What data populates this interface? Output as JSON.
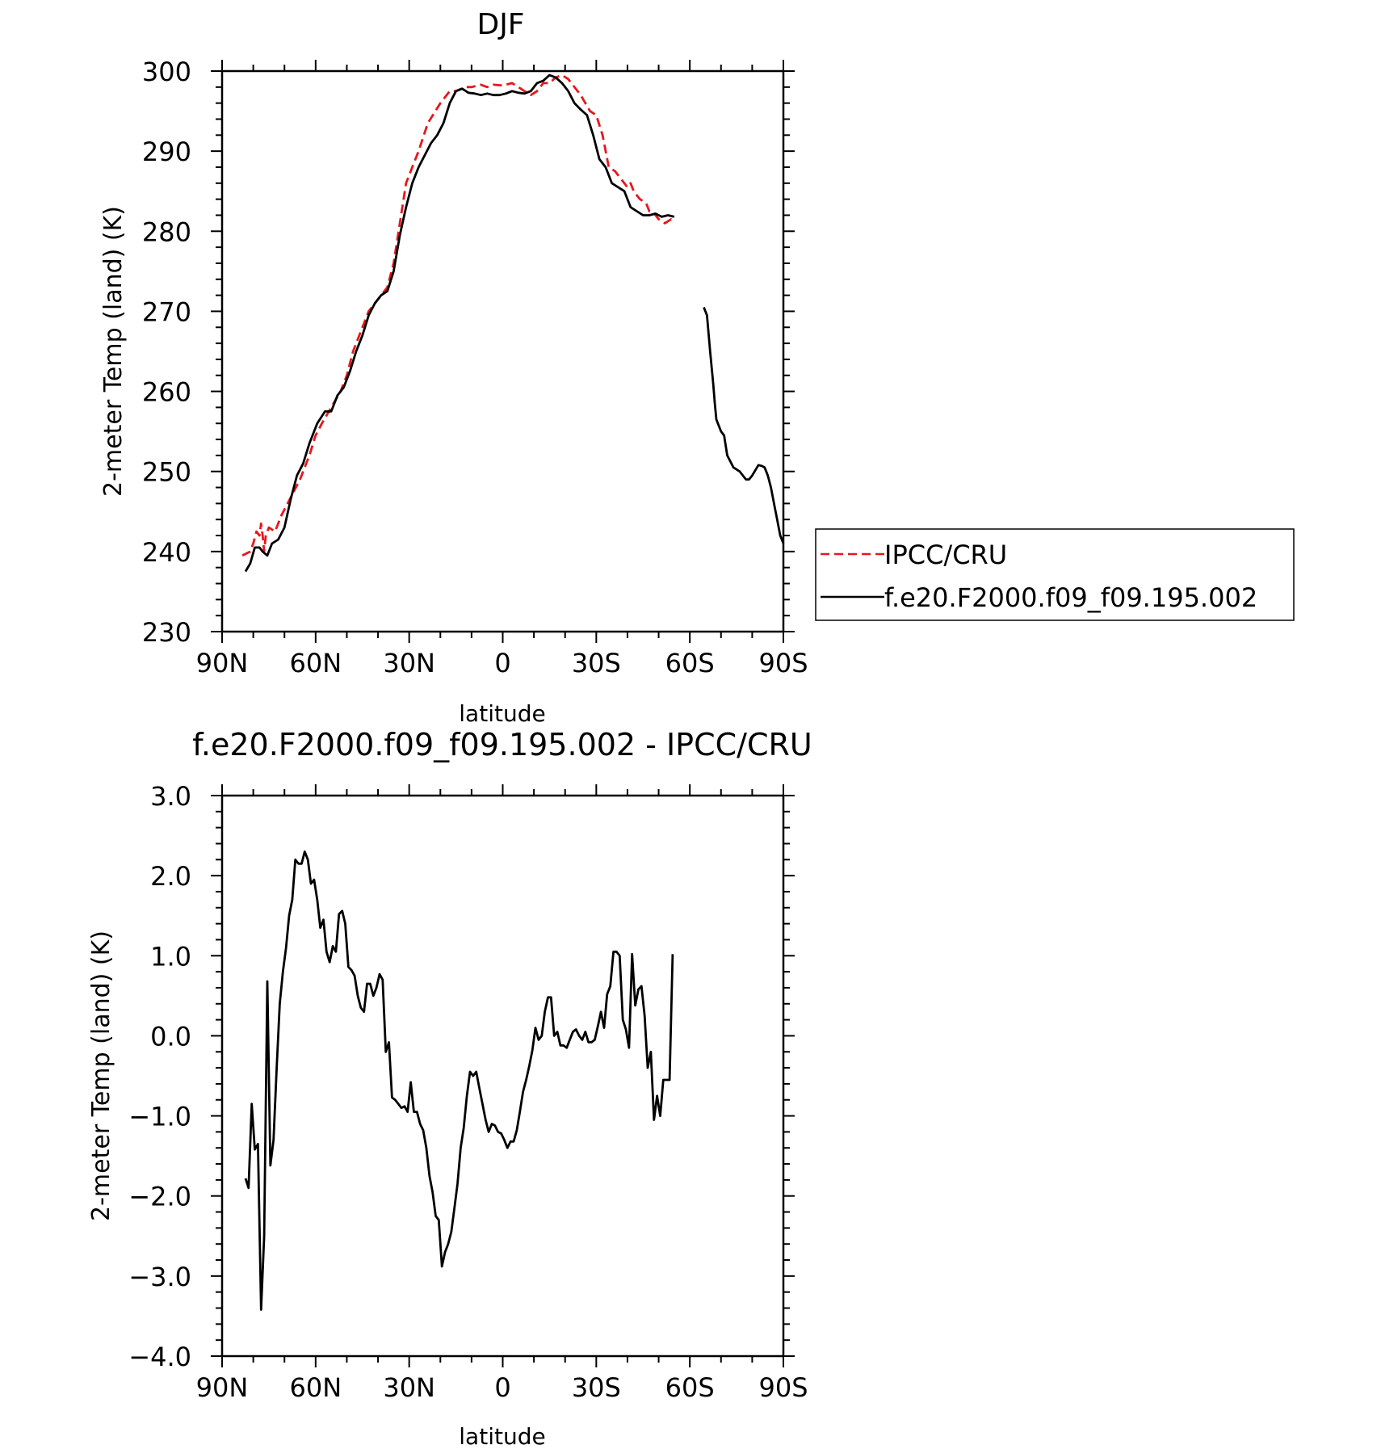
{
  "chart_data": [
    {
      "type": "line",
      "title": "DJF",
      "xlabel": "latitude",
      "ylabel": "2-meter Temp (land) (K)",
      "xlim": [
        90,
        -90
      ],
      "ylim": [
        230,
        300
      ],
      "x_ticks": [
        {
          "value": 90,
          "label": "90N"
        },
        {
          "value": 60,
          "label": "60N"
        },
        {
          "value": 30,
          "label": "30N"
        },
        {
          "value": 0,
          "label": "0"
        },
        {
          "value": -30,
          "label": "30S"
        },
        {
          "value": -60,
          "label": "60S"
        },
        {
          "value": -90,
          "label": "90S"
        }
      ],
      "y_ticks": [
        {
          "value": 230,
          "label": "230"
        },
        {
          "value": 240,
          "label": "240"
        },
        {
          "value": 250,
          "label": "250"
        },
        {
          "value": 260,
          "label": "260"
        },
        {
          "value": 270,
          "label": "270"
        },
        {
          "value": 280,
          "label": "280"
        },
        {
          "value": 290,
          "label": "290"
        },
        {
          "value": 300,
          "label": "300"
        }
      ],
      "legend": {
        "placement": "right"
      },
      "series": [
        {
          "name": "IPCC/CRU",
          "color": "#e8161b",
          "dash": true,
          "x": [
            83.5,
            81,
            80,
            79,
            78,
            77.5,
            77,
            76.5,
            76,
            75,
            73,
            71,
            69,
            67,
            65,
            62,
            60,
            58,
            55,
            52,
            50,
            48,
            46,
            43,
            41,
            39,
            37,
            35,
            33,
            31,
            29,
            27,
            24,
            20,
            17,
            15,
            12,
            10,
            7,
            5,
            3,
            0,
            -3,
            -5,
            -7,
            -9,
            -11,
            -13,
            -15,
            -17,
            -19,
            -21,
            -23,
            -25,
            -28,
            -30,
            -32,
            -34,
            -36,
            -38,
            -40,
            -41,
            -42,
            -43,
            -44,
            -46,
            -47,
            -48,
            -50,
            -52,
            -54,
            -54.5,
            -55
          ],
          "y": [
            239.5,
            240,
            241,
            242.5,
            242,
            243.5,
            242,
            240,
            242,
            243,
            242.5,
            244.5,
            246,
            247.5,
            249,
            252,
            254.5,
            256,
            258,
            260,
            262,
            265,
            267,
            270,
            271,
            272,
            273,
            276,
            281,
            286,
            288,
            290,
            293.5,
            296,
            297.5,
            297.5,
            298,
            298,
            298.3,
            298,
            298.3,
            298.2,
            298.5,
            298,
            297.5,
            297,
            297.5,
            298.5,
            298.5,
            299.2,
            299.5,
            299,
            298,
            297,
            295,
            294.5,
            292,
            288,
            287.5,
            286.5,
            285.5,
            286,
            285,
            284.5,
            284,
            283.5,
            282.5,
            282.5,
            281.5,
            281,
            281.5,
            281.3,
            281.5
          ]
        },
        {
          "name": "f.e20.F2000.f09_f09.195.002",
          "color": "#000000",
          "dash": false,
          "x": [
            82.5,
            81,
            79.5,
            78,
            77,
            75.5,
            74,
            72,
            70,
            68,
            66,
            64,
            62,
            59.5,
            57,
            55,
            53,
            51,
            49,
            47,
            45,
            43,
            41,
            39,
            37,
            35,
            33,
            31,
            29,
            27,
            25,
            23,
            21,
            19,
            17,
            15,
            13,
            11,
            9,
            7,
            5,
            3,
            1,
            -1,
            -3,
            -5,
            -7,
            -9,
            -11,
            -13,
            -15,
            -17,
            -19,
            -21,
            -23,
            -25,
            -27,
            -29,
            -31,
            -33,
            -35,
            -37,
            -39,
            -41,
            -43,
            -45,
            -47,
            -49,
            -51,
            -53,
            -55
          ],
          "y": [
            237.5,
            238.5,
            240.5,
            240.5,
            240,
            239.5,
            241,
            241.5,
            243,
            246.5,
            249.5,
            251,
            253.5,
            256,
            257.5,
            257.5,
            259.5,
            260.5,
            262.5,
            265,
            267,
            269.5,
            271,
            272,
            272.5,
            275,
            279.5,
            283,
            286,
            288,
            289.5,
            291,
            292,
            293.5,
            296,
            297.5,
            297.8,
            297.3,
            297.2,
            297,
            297.2,
            297,
            297,
            297.2,
            297.5,
            297.3,
            297.2,
            297.5,
            298.5,
            298.8,
            299.5,
            299.2,
            298.5,
            297.5,
            296,
            295.2,
            294.5,
            292,
            289,
            288,
            286,
            285.5,
            285,
            283,
            282.5,
            282,
            282,
            282.2,
            281.8,
            282,
            281.8
          ]
        },
        {
          "name": "f.e20.F2000.f09_f09.195.002",
          "color": "#000000",
          "dash": false,
          "legend": false,
          "x": [
            -64.5,
            -65.5,
            -66.5,
            -67.5,
            -68,
            -68.5,
            -69,
            -70,
            -71,
            -72,
            -74,
            -76,
            -77,
            -78,
            -79,
            -80,
            -82,
            -83,
            -84,
            -85,
            -86,
            -87,
            -88,
            -89,
            -90
          ],
          "y": [
            270.5,
            269.5,
            265,
            261,
            258.5,
            256.5,
            256,
            255,
            254.5,
            252,
            250.5,
            250,
            249.5,
            249,
            249,
            249.5,
            250.8,
            250.7,
            250.5,
            249.5,
            248,
            246,
            244,
            242,
            241
          ]
        }
      ]
    },
    {
      "type": "line",
      "title": "f.e20.F2000.f09_f09.195.002 - IPCC/CRU",
      "xlabel": "latitude",
      "ylabel": "2-meter Temp (land) (K)",
      "xlim": [
        90,
        -90
      ],
      "ylim": [
        -4.0,
        3.0
      ],
      "x_ticks": [
        {
          "value": 90,
          "label": "90N"
        },
        {
          "value": 60,
          "label": "60N"
        },
        {
          "value": 30,
          "label": "30N"
        },
        {
          "value": 0,
          "label": "0"
        },
        {
          "value": -30,
          "label": "30S"
        },
        {
          "value": -60,
          "label": "60S"
        },
        {
          "value": -90,
          "label": "90S"
        }
      ],
      "y_ticks": [
        {
          "value": -4.0,
          "label": "-4.0"
        },
        {
          "value": -3.0,
          "label": "-3.0"
        },
        {
          "value": -2.0,
          "label": "-2.0"
        },
        {
          "value": -1.0,
          "label": "-1.0"
        },
        {
          "value": 0.0,
          "label": "0.0"
        },
        {
          "value": 1.0,
          "label": "1.0"
        },
        {
          "value": 2.0,
          "label": "2.0"
        },
        {
          "value": 3.0,
          "label": "3.0"
        }
      ],
      "series": [
        {
          "color": "#000000",
          "dash": false,
          "x": [
            82.5,
            81.5,
            80.5,
            79.5,
            78.5,
            77.5,
            76.5,
            75.5,
            74.5,
            73.5,
            72.5,
            71.5,
            70.5,
            69.5,
            68.5,
            67.5,
            66.5,
            65.5,
            64.5,
            63.5,
            62.5,
            61.5,
            60.5,
            59.5,
            58.5,
            57.5,
            56.5,
            55.5,
            54.5,
            53.5,
            52.5,
            51.5,
            50.5,
            49.5,
            48.5,
            47.5,
            46.5,
            45.5,
            44.5,
            43.5,
            42.5,
            41.5,
            40.5,
            39.5,
            38.5,
            37.5,
            36.5,
            35.5,
            34.5,
            33.5,
            32.5,
            31.5,
            30.5,
            29.5,
            28.5,
            27.5,
            26.5,
            25.5,
            24.5,
            23.5,
            22.5,
            21.5,
            20.5,
            19.5,
            18.5,
            17.5,
            16.5,
            15.5,
            14.5,
            13.5,
            12.5,
            11.5,
            10.5,
            9.5,
            8.5,
            7.5,
            6.5,
            5.5,
            4.5,
            3.5,
            2.5,
            1.5,
            0.5,
            -0.5,
            -1.5,
            -2.5,
            -3.5,
            -4.5,
            -5.5,
            -6.5,
            -7.5,
            -8.5,
            -9.5,
            -10.5,
            -11.5,
            -12.5,
            -13.5,
            -14.5,
            -15.5,
            -16.5,
            -17.5,
            -18.5,
            -19.5,
            -20.5,
            -21.5,
            -22.5,
            -23.5,
            -24.5,
            -25.5,
            -26.5,
            -27.5,
            -28.5,
            -29.5,
            -30.5,
            -31.5,
            -32.5,
            -33.5,
            -34.5,
            -35.5,
            -36.5,
            -37.5,
            -38.5,
            -39.5,
            -40.5,
            -41.5,
            -42.5,
            -43.5,
            -44.5,
            -45.5,
            -46.5,
            -47.5,
            -48.5,
            -49.5,
            -50.5,
            -51.5,
            -52.5,
            -53.5,
            -54.5
          ],
          "y": [
            -1.78,
            -1.9,
            -0.85,
            -1.42,
            -1.35,
            -3.42,
            -2.5,
            0.68,
            -1.62,
            -1.3,
            -0.4,
            0.4,
            0.8,
            1.1,
            1.5,
            1.7,
            2.2,
            2.15,
            2.15,
            2.3,
            2.2,
            1.9,
            1.95,
            1.7,
            1.35,
            1.45,
            1.05,
            0.92,
            1.12,
            1.05,
            1.52,
            1.56,
            1.4,
            0.86,
            0.82,
            0.75,
            0.5,
            0.35,
            0.3,
            0.65,
            0.65,
            0.5,
            0.6,
            0.77,
            0.7,
            -0.2,
            -0.08,
            -0.77,
            -0.8,
            -0.85,
            -0.9,
            -0.88,
            -0.95,
            -0.58,
            -0.95,
            -0.95,
            -1.1,
            -1.18,
            -1.4,
            -1.75,
            -1.95,
            -2.25,
            -2.3,
            -2.88,
            -2.7,
            -2.6,
            -2.45,
            -2.15,
            -1.85,
            -1.4,
            -1.15,
            -0.75,
            -0.45,
            -0.5,
            -0.45,
            -0.65,
            -0.85,
            -1.05,
            -1.2,
            -1.1,
            -1.12,
            -1.2,
            -1.22,
            -1.3,
            -1.4,
            -1.32,
            -1.32,
            -1.18,
            -0.95,
            -0.7,
            -0.55,
            -0.38,
            -0.18,
            0.1,
            -0.05,
            0.0,
            0.3,
            0.48,
            0.48,
            0.0,
            0.05,
            -0.12,
            -0.12,
            -0.15,
            -0.05,
            0.05,
            0.08,
            0.0,
            -0.05,
            0.05,
            -0.08,
            -0.08,
            -0.05,
            0.12,
            0.3,
            0.1,
            0.52,
            0.62,
            1.05,
            1.05,
            1.0,
            0.2,
            0.08,
            -0.15,
            1.02,
            0.38,
            0.58,
            0.62,
            0.25,
            -0.4,
            -0.2,
            -1.05,
            -0.75,
            -1.0,
            -0.55,
            -0.55,
            -0.55,
            1.02
          ]
        }
      ]
    }
  ]
}
